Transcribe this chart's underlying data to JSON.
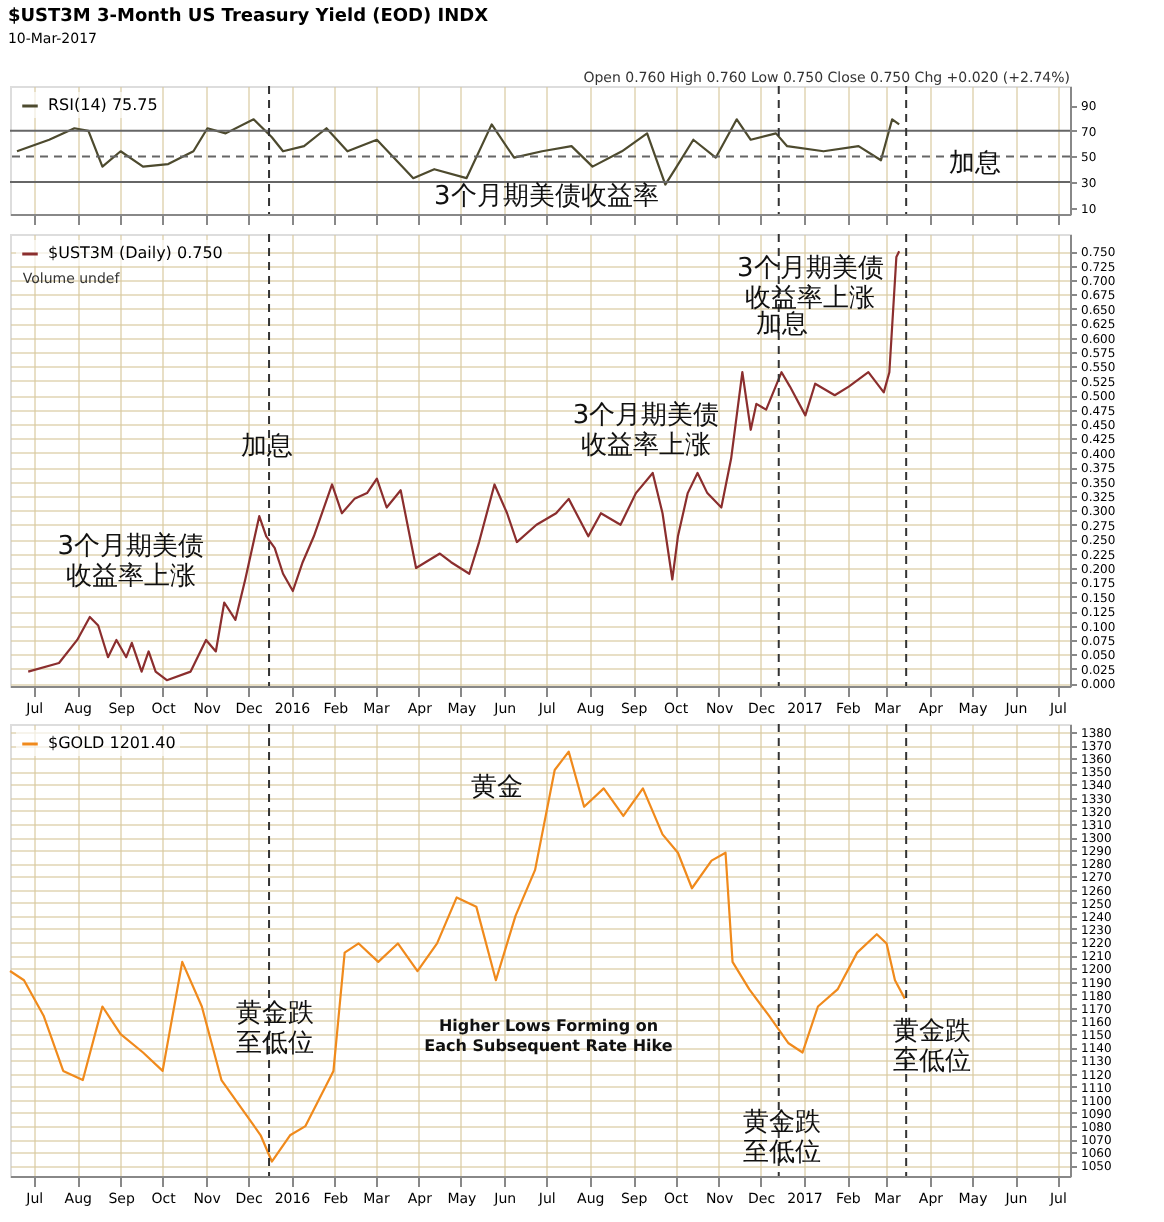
{
  "chart_data": [
    {
      "type": "line",
      "title": "$UST3M 3-Month US Treasury Yield (EOD) INDX",
      "subtitle": "10-Mar-2017",
      "x": [
        "2015-06-19",
        "2015-07-12",
        "2015-07-30",
        "2015-08-09",
        "2015-08-19",
        "2015-09-01",
        "2015-09-17",
        "2015-10-05",
        "2015-10-23",
        "2015-11-02",
        "2015-11-15",
        "2015-12-05",
        "2015-12-18",
        "2015-12-26",
        "2016-01-10",
        "2016-01-26",
        "2016-02-10",
        "2016-03-02",
        "2016-03-28",
        "2016-04-12",
        "2016-05-05",
        "2016-05-23",
        "2016-06-08",
        "2016-06-28",
        "2016-07-19",
        "2016-08-03",
        "2016-08-24",
        "2016-09-11",
        "2016-09-24",
        "2016-10-01",
        "2016-10-14",
        "2016-10-30",
        "2016-11-14",
        "2016-11-24",
        "2016-12-12",
        "2016-12-20",
        "2017-01-15",
        "2017-02-09",
        "2017-02-25",
        "2017-03-05",
        "2017-03-10"
      ],
      "series": [
        {
          "name": "RSI(14) 75.75",
          "color": "#4d4a2e",
          "values": [
            54,
            63,
            72,
            70,
            42,
            54,
            42,
            44,
            54,
            72,
            68,
            79,
            65,
            54,
            58,
            72,
            54,
            63,
            33,
            40,
            33,
            75,
            49,
            54,
            58,
            42,
            54,
            68,
            28,
            40,
            63,
            49,
            79,
            63,
            68,
            58,
            54,
            58,
            47,
            79,
            75
          ]
        }
      ],
      "xlim": [
        "2015-06-14",
        "2017-07-10"
      ],
      "xticks": [
        {
          "value": "2015-07-01",
          "label": "Jul"
        },
        {
          "value": "2015-08-01",
          "label": "Aug"
        },
        {
          "value": "2015-09-01",
          "label": "Sep"
        },
        {
          "value": "2015-10-01",
          "label": "Oct"
        },
        {
          "value": "2015-11-01",
          "label": "Nov"
        },
        {
          "value": "2015-12-01",
          "label": "Dec"
        },
        {
          "value": "2016-01-01",
          "label": "2016"
        },
        {
          "value": "2016-02-01",
          "label": "Feb"
        },
        {
          "value": "2016-03-01",
          "label": "Mar"
        },
        {
          "value": "2016-04-01",
          "label": "Apr"
        },
        {
          "value": "2016-05-01",
          "label": "May"
        },
        {
          "value": "2016-06-01",
          "label": "Jun"
        },
        {
          "value": "2016-07-01",
          "label": "Jul"
        },
        {
          "value": "2016-08-01",
          "label": "Aug"
        },
        {
          "value": "2016-09-01",
          "label": "Sep"
        },
        {
          "value": "2016-10-01",
          "label": "Oct"
        },
        {
          "value": "2016-11-01",
          "label": "Nov"
        },
        {
          "value": "2016-12-01",
          "label": "Dec"
        },
        {
          "value": "2017-01-01",
          "label": "2017"
        },
        {
          "value": "2017-02-01",
          "label": "Feb"
        },
        {
          "value": "2017-03-01",
          "label": "Mar"
        },
        {
          "value": "2017-04-01",
          "label": "Apr"
        },
        {
          "value": "2017-05-01",
          "label": "May"
        },
        {
          "value": "2017-06-01",
          "label": "Jun"
        },
        {
          "value": "2017-07-01",
          "label": "Jul"
        }
      ],
      "ylim": [
        5,
        105
      ],
      "yticks": [
        10,
        30,
        50,
        70,
        90
      ],
      "tick_labels": "y",
      "grid": "x",
      "legend": "top left",
      "ref_lines": [
        {
          "axis": "y",
          "value": 70,
          "color": "#666666",
          "line_style": "solid"
        },
        {
          "axis": "y",
          "value": 50,
          "color": "#666666",
          "line_style": "dashed"
        },
        {
          "axis": "y",
          "value": 30,
          "color": "#666666",
          "line_style": "solid"
        },
        {
          "axis": "x",
          "value": "2015-12-16",
          "color": "#333333",
          "line_style": "dashed"
        },
        {
          "axis": "x",
          "value": "2016-12-14",
          "color": "#333333",
          "line_style": "dashed"
        },
        {
          "axis": "x",
          "value": "2017-03-15",
          "color": "#333333",
          "line_style": "dashed"
        }
      ],
      "annotations": [
        "Open 0.760 High 0.760 Low 0.750 Close 0.750 Chg +0.020 (+2.74%)",
        "3个月期美债收益率",
        "加息"
      ]
    },
    {
      "type": "line",
      "x": [
        "2015-06-27",
        "2015-07-19",
        "2015-08-01",
        "2015-08-10",
        "2015-08-16",
        "2015-08-23",
        "2015-08-29",
        "2015-09-05",
        "2015-09-09",
        "2015-09-16",
        "2015-09-21",
        "2015-09-26",
        "2015-10-04",
        "2015-10-21",
        "2015-11-01",
        "2015-11-08",
        "2015-11-14",
        "2015-11-22",
        "2015-11-29",
        "2015-12-09",
        "2015-12-14",
        "2015-12-20",
        "2015-12-26",
        "2016-01-02",
        "2016-01-09",
        "2016-01-17",
        "2016-01-30",
        "2016-02-06",
        "2016-02-15",
        "2016-02-24",
        "2016-03-02",
        "2016-03-09",
        "2016-03-19",
        "2016-03-30",
        "2016-04-16",
        "2016-04-24",
        "2016-05-07",
        "2016-05-14",
        "2016-05-25",
        "2016-06-03",
        "2016-06-10",
        "2016-06-24",
        "2016-07-08",
        "2016-07-17",
        "2016-07-31",
        "2016-08-09",
        "2016-08-23",
        "2016-09-03",
        "2016-09-15",
        "2016-09-22",
        "2016-09-29",
        "2016-10-03",
        "2016-10-10",
        "2016-10-17",
        "2016-10-24",
        "2016-11-03",
        "2016-11-10",
        "2016-11-18",
        "2016-11-24",
        "2016-11-28",
        "2016-12-05",
        "2016-12-16",
        "2016-12-22",
        "2017-01-02",
        "2017-01-09",
        "2017-01-23",
        "2017-02-02",
        "2017-02-16",
        "2017-02-27",
        "2017-03-03",
        "2017-03-08",
        "2017-03-10"
      ],
      "series": [
        {
          "name": "$UST3M (Daily) 0.750",
          "color": "#8b2e2e",
          "values": [
            0.02,
            0.035,
            0.075,
            0.115,
            0.1,
            0.045,
            0.075,
            0.045,
            0.07,
            0.02,
            0.055,
            0.02,
            0.005,
            0.02,
            0.075,
            0.055,
            0.14,
            0.11,
            0.18,
            0.29,
            0.255,
            0.235,
            0.19,
            0.16,
            0.21,
            0.255,
            0.345,
            0.295,
            0.32,
            0.33,
            0.355,
            0.305,
            0.335,
            0.2,
            0.225,
            0.21,
            0.19,
            0.245,
            0.345,
            0.295,
            0.245,
            0.275,
            0.295,
            0.32,
            0.255,
            0.295,
            0.275,
            0.33,
            0.365,
            0.295,
            0.18,
            0.255,
            0.33,
            0.365,
            0.33,
            0.305,
            0.39,
            0.54,
            0.44,
            0.485,
            0.475,
            0.54,
            0.515,
            0.465,
            0.52,
            0.5,
            0.515,
            0.54,
            0.505,
            0.54,
            0.74,
            0.75
          ]
        }
      ],
      "xlim": [
        "2015-06-14",
        "2017-07-10"
      ],
      "xticks": [
        {
          "value": "2015-07-01",
          "label": "Jul"
        },
        {
          "value": "2015-08-01",
          "label": "Aug"
        },
        {
          "value": "2015-09-01",
          "label": "Sep"
        },
        {
          "value": "2015-10-01",
          "label": "Oct"
        },
        {
          "value": "2015-11-01",
          "label": "Nov"
        },
        {
          "value": "2015-12-01",
          "label": "Dec"
        },
        {
          "value": "2016-01-01",
          "label": "2016"
        },
        {
          "value": "2016-02-01",
          "label": "Feb"
        },
        {
          "value": "2016-03-01",
          "label": "Mar"
        },
        {
          "value": "2016-04-01",
          "label": "Apr"
        },
        {
          "value": "2016-05-01",
          "label": "May"
        },
        {
          "value": "2016-06-01",
          "label": "Jun"
        },
        {
          "value": "2016-07-01",
          "label": "Jul"
        },
        {
          "value": "2016-08-01",
          "label": "Aug"
        },
        {
          "value": "2016-09-01",
          "label": "Sep"
        },
        {
          "value": "2016-10-01",
          "label": "Oct"
        },
        {
          "value": "2016-11-01",
          "label": "Nov"
        },
        {
          "value": "2016-12-01",
          "label": "Dec"
        },
        {
          "value": "2017-01-01",
          "label": "2017"
        },
        {
          "value": "2017-02-01",
          "label": "Feb"
        },
        {
          "value": "2017-03-01",
          "label": "Mar"
        },
        {
          "value": "2017-04-01",
          "label": "Apr"
        },
        {
          "value": "2017-05-01",
          "label": "May"
        },
        {
          "value": "2017-06-01",
          "label": "Jun"
        },
        {
          "value": "2017-07-01",
          "label": "Jul"
        }
      ],
      "ylim": [
        -0.005,
        0.78
      ],
      "yticks": [
        {
          "value": 0,
          "label": "0.000"
        },
        {
          "value": 0.025,
          "label": "0.025"
        },
        {
          "value": 0.05,
          "label": "0.050"
        },
        {
          "value": 0.075,
          "label": "0.075"
        },
        {
          "value": 0.1,
          "label": "0.100"
        },
        {
          "value": 0.125,
          "label": "0.125"
        },
        {
          "value": 0.15,
          "label": "0.150"
        },
        {
          "value": 0.175,
          "label": "0.175"
        },
        {
          "value": 0.2,
          "label": "0.200"
        },
        {
          "value": 0.225,
          "label": "0.225"
        },
        {
          "value": 0.25,
          "label": "0.250"
        },
        {
          "value": 0.275,
          "label": "0.275"
        },
        {
          "value": 0.3,
          "label": "0.300"
        },
        {
          "value": 0.325,
          "label": "0.325"
        },
        {
          "value": 0.35,
          "label": "0.350"
        },
        {
          "value": 0.375,
          "label": "0.375"
        },
        {
          "value": 0.4,
          "label": "0.400"
        },
        {
          "value": 0.425,
          "label": "0.425"
        },
        {
          "value": 0.45,
          "label": "0.450"
        },
        {
          "value": 0.475,
          "label": "0.475"
        },
        {
          "value": 0.5,
          "label": "0.500"
        },
        {
          "value": 0.525,
          "label": "0.525"
        },
        {
          "value": 0.55,
          "label": "0.550"
        },
        {
          "value": 0.575,
          "label": "0.575"
        },
        {
          "value": 0.6,
          "label": "0.600"
        },
        {
          "value": 0.625,
          "label": "0.625"
        },
        {
          "value": 0.65,
          "label": "0.650"
        },
        {
          "value": 0.675,
          "label": "0.675"
        },
        {
          "value": 0.7,
          "label": "0.700"
        },
        {
          "value": 0.725,
          "label": "0.725"
        },
        {
          "value": 0.75,
          "label": "0.750"
        }
      ],
      "grid": true,
      "legend": "top left",
      "ref_lines": [
        {
          "axis": "x",
          "value": "2015-12-16",
          "color": "#333333",
          "line_style": "dashed"
        },
        {
          "axis": "x",
          "value": "2016-12-14",
          "color": "#333333",
          "line_style": "dashed"
        },
        {
          "axis": "x",
          "value": "2017-03-15",
          "color": "#333333",
          "line_style": "dashed"
        }
      ],
      "annotations": [
        "Volume undef",
        "3个月期美债收益率上涨",
        "加息",
        "3个月期美债收益率上涨",
        "加息",
        "3个月期美债收益率上涨"
      ]
    },
    {
      "type": "line",
      "x": [
        "2015-06-14",
        "2015-06-24",
        "2015-07-08",
        "2015-07-22",
        "2015-08-05",
        "2015-08-19",
        "2015-09-01",
        "2015-09-17",
        "2015-10-01",
        "2015-10-15",
        "2015-10-29",
        "2015-11-12",
        "2015-11-26",
        "2015-12-10",
        "2015-12-18",
        "2015-12-31",
        "2016-01-11",
        "2016-01-21",
        "2016-01-31",
        "2016-02-08",
        "2016-02-18",
        "2016-03-03",
        "2016-03-17",
        "2016-03-31",
        "2016-04-14",
        "2016-04-28",
        "2016-05-12",
        "2016-05-26",
        "2016-06-09",
        "2016-06-23",
        "2016-07-07",
        "2016-07-17",
        "2016-07-28",
        "2016-08-11",
        "2016-08-25",
        "2016-09-08",
        "2016-09-22",
        "2016-10-03",
        "2016-10-13",
        "2016-10-27",
        "2016-11-06",
        "2016-11-11",
        "2016-11-23",
        "2016-12-07",
        "2016-12-21",
        "2016-12-31",
        "2017-01-11",
        "2017-01-25",
        "2017-02-08",
        "2017-02-22",
        "2017-03-01",
        "2017-03-07",
        "2017-03-14"
      ],
      "series": [
        {
          "name": "$GOLD 1201.40",
          "color": "#f08a1c",
          "values": [
            1198,
            1191,
            1164,
            1122,
            1115,
            1171,
            1150,
            1136,
            1122,
            1205,
            1171,
            1115,
            1094,
            1073,
            1053,
            1073,
            1080,
            1101,
            1122,
            1212,
            1219,
            1205,
            1219,
            1198,
            1219,
            1254,
            1247,
            1191,
            1240,
            1275,
            1351,
            1365,
            1323,
            1337,
            1316,
            1337,
            1302,
            1288,
            1261,
            1282,
            1288,
            1205,
            1184,
            1164,
            1143,
            1136,
            1171,
            1184,
            1212,
            1226,
            1219,
            1191,
            1177
          ]
        }
      ],
      "xlim": [
        "2015-06-14",
        "2017-07-10"
      ],
      "xticks": [
        {
          "value": "2015-07-01",
          "label": "Jul"
        },
        {
          "value": "2015-08-01",
          "label": "Aug"
        },
        {
          "value": "2015-09-01",
          "label": "Sep"
        },
        {
          "value": "2015-10-01",
          "label": "Oct"
        },
        {
          "value": "2015-11-01",
          "label": "Nov"
        },
        {
          "value": "2015-12-01",
          "label": "Dec"
        },
        {
          "value": "2016-01-01",
          "label": "2016"
        },
        {
          "value": "2016-02-01",
          "label": "Feb"
        },
        {
          "value": "2016-03-01",
          "label": "Mar"
        },
        {
          "value": "2016-04-01",
          "label": "Apr"
        },
        {
          "value": "2016-05-01",
          "label": "May"
        },
        {
          "value": "2016-06-01",
          "label": "Jun"
        },
        {
          "value": "2016-07-01",
          "label": "Jul"
        },
        {
          "value": "2016-08-01",
          "label": "Aug"
        },
        {
          "value": "2016-09-01",
          "label": "Sep"
        },
        {
          "value": "2016-10-01",
          "label": "Oct"
        },
        {
          "value": "2016-11-01",
          "label": "Nov"
        },
        {
          "value": "2016-12-01",
          "label": "Dec"
        },
        {
          "value": "2017-01-01",
          "label": "2017"
        },
        {
          "value": "2017-02-01",
          "label": "Feb"
        },
        {
          "value": "2017-03-01",
          "label": "Mar"
        },
        {
          "value": "2017-04-01",
          "label": "Apr"
        },
        {
          "value": "2017-05-01",
          "label": "May"
        },
        {
          "value": "2017-06-01",
          "label": "Jun"
        },
        {
          "value": "2017-07-01",
          "label": "Jul"
        }
      ],
      "ylim": [
        1042,
        1386
      ],
      "yticks": [
        1050,
        1060,
        1070,
        1080,
        1090,
        1100,
        1110,
        1120,
        1130,
        1140,
        1150,
        1160,
        1170,
        1180,
        1190,
        1200,
        1210,
        1220,
        1230,
        1240,
        1250,
        1260,
        1270,
        1280,
        1290,
        1300,
        1310,
        1320,
        1330,
        1340,
        1350,
        1360,
        1370,
        1380
      ],
      "grid": true,
      "legend": "top left",
      "ref_lines": [
        {
          "axis": "x",
          "value": "2015-12-16",
          "color": "#333333",
          "line_style": "dashed"
        },
        {
          "axis": "x",
          "value": "2016-12-14",
          "color": "#333333",
          "line_style": "dashed"
        },
        {
          "axis": "x",
          "value": "2017-03-15",
          "color": "#333333",
          "line_style": "dashed"
        }
      ],
      "annotations": [
        "黄金",
        "黄金跌至低位",
        "Higher Lows Forming on Each Subsequent Rate Hike",
        "黄金跌至低位",
        "黄金跌至低位"
      ]
    }
  ]
}
